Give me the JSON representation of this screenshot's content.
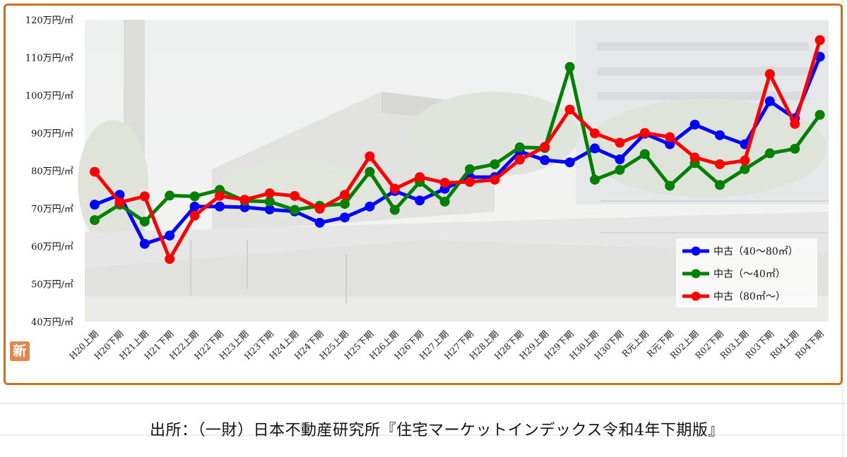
{
  "source_text": "出所：（一財）日本不動産研究所『住宅マーケットインデックス令和4年下期版』",
  "badge_text": "新",
  "colors": {
    "frame": "#c8741c",
    "series_40_80": "#0000ff",
    "series_under40": "#008000",
    "series_over80": "#ff0000"
  },
  "chart_data": {
    "type": "line",
    "title": "",
    "xlabel": "",
    "ylabel": "",
    "ylim": [
      40,
      120
    ],
    "y_ticks": [
      {
        "value": 120,
        "label": "120万円/㎡"
      },
      {
        "value": 110,
        "label": "110万円/㎡"
      },
      {
        "value": 100,
        "label": "100万円/㎡"
      },
      {
        "value": 90,
        "label": "90万円/㎡"
      },
      {
        "value": 80,
        "label": "80万円/㎡"
      },
      {
        "value": 70,
        "label": "70万円/㎡"
      },
      {
        "value": 60,
        "label": "60万円/㎡"
      },
      {
        "value": 50,
        "label": "50万円/㎡"
      },
      {
        "value": 40,
        "label": "40万円/㎡"
      }
    ],
    "categories": [
      "H20上期",
      "H20下期",
      "H21上期",
      "H21下期",
      "H22上期",
      "H22下期",
      "H23上期",
      "H23下期",
      "H24上期",
      "H24下期",
      "H25上期",
      "H25下期",
      "H26上期",
      "H26下期",
      "H27上期",
      "H27下期",
      "H28上期",
      "H28下期",
      "H29上期",
      "H29下期",
      "H30上期",
      "H30下期",
      "R元上期",
      "R元下期",
      "R02上期",
      "R02下期",
      "R03上期",
      "R03下期",
      "R04上期",
      "R04下期"
    ],
    "legend_position": "bottom-right",
    "grid": false,
    "series": [
      {
        "name": "中古（40～80㎡）",
        "color": "#0000ff",
        "values": [
          71.0,
          73.6,
          60.6,
          62.8,
          70.5,
          70.5,
          70.3,
          69.7,
          69.2,
          66.2,
          67.6,
          70.5,
          74.6,
          72.1,
          75.2,
          78.3,
          78.3,
          85.1,
          82.8,
          82.2,
          85.9,
          83.0,
          89.8,
          87.0,
          92.2,
          89.4,
          87.0,
          98.4,
          93.9,
          110.2
        ]
      },
      {
        "name": "中古（～40㎡）",
        "color": "#008000",
        "values": [
          66.9,
          71.0,
          66.5,
          73.4,
          73.2,
          74.9,
          72.0,
          71.8,
          69.6,
          70.7,
          71.2,
          79.7,
          69.6,
          77.0,
          71.8,
          80.4,
          81.7,
          86.2,
          86.0,
          107.5,
          77.6,
          80.2,
          84.4,
          76.0,
          82.0,
          76.2,
          80.4,
          84.6,
          85.8,
          94.8
        ]
      },
      {
        "name": "中古（80㎡～）",
        "color": "#ff0000",
        "values": [
          79.7,
          71.6,
          73.2,
          56.6,
          68.1,
          73.3,
          72.3,
          74.0,
          73.3,
          69.9,
          73.6,
          83.8,
          75.2,
          78.3,
          76.8,
          77.0,
          77.6,
          82.9,
          86.3,
          96.2,
          89.9,
          87.4,
          90.0,
          88.9,
          83.5,
          81.7,
          82.7,
          105.6,
          92.4,
          114.6
        ]
      }
    ]
  }
}
